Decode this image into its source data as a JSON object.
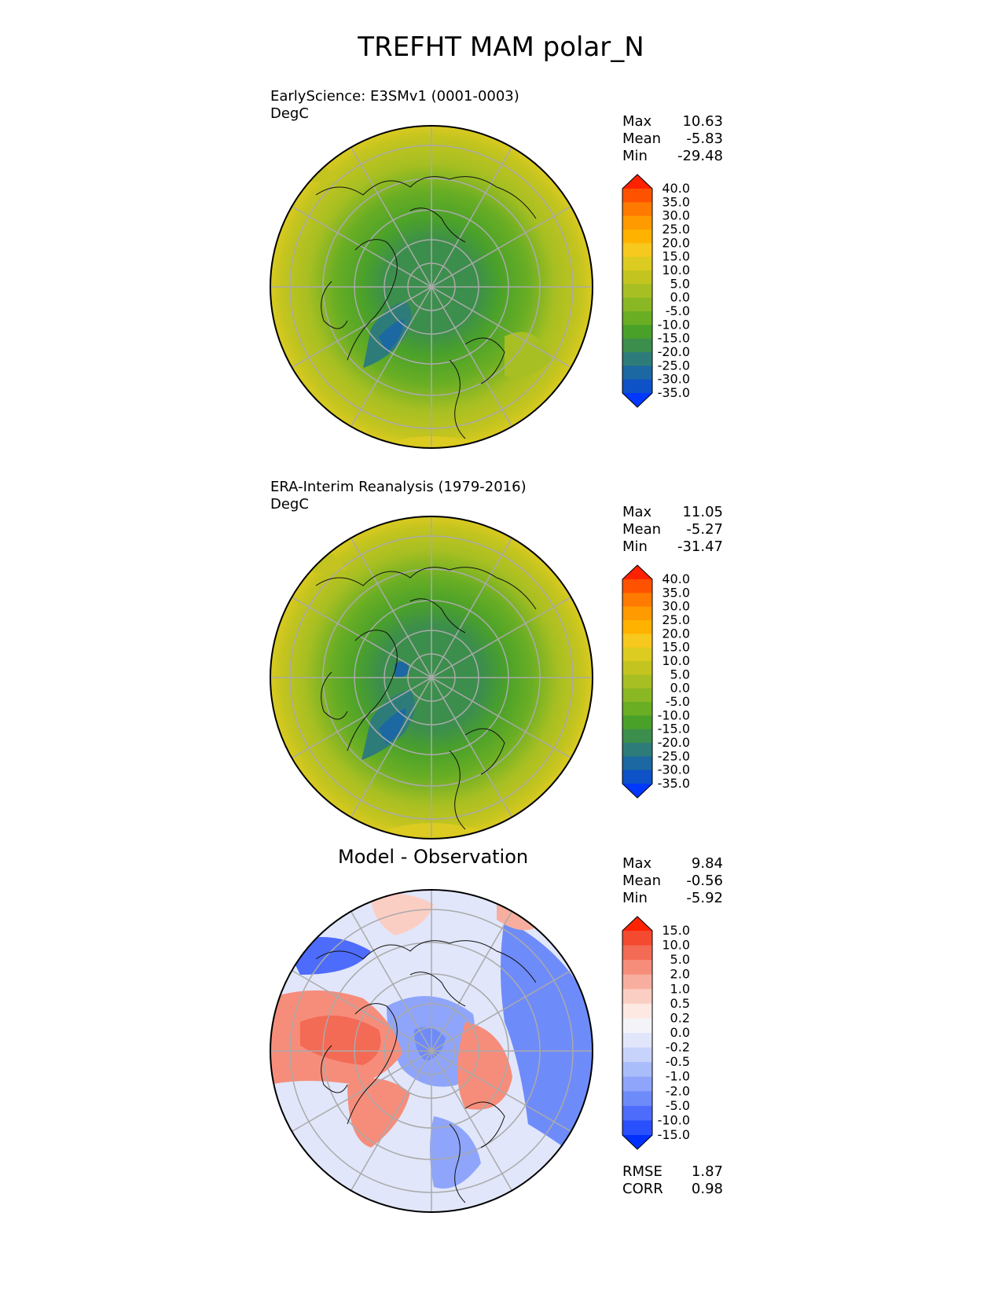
{
  "page_title": "TREFHT MAM polar_N",
  "colors": {
    "background": "#ffffff",
    "grid": "#aaaaaa",
    "coast": "#111111"
  },
  "panels": [
    {
      "id": "test",
      "subtitle": "EarlyScience: E3SMv1 (0001-0003)",
      "units": "DegC",
      "stats": {
        "max_label": "Max",
        "max": "10.63",
        "mean_label": "Mean",
        "mean": "-5.83",
        "min_label": "Min",
        "min": "-29.48"
      },
      "colorbar_labels": [
        "40.0",
        "35.0",
        "30.0",
        "25.0",
        "20.0",
        "15.0",
        "10.0",
        "5.0",
        "0.0",
        "-5.0",
        "-10.0",
        "-15.0",
        "-20.0",
        "-25.0",
        "-30.0",
        "-35.0"
      ]
    },
    {
      "id": "reference",
      "subtitle": "ERA-Interim Reanalysis (1979-2016)",
      "units": "DegC",
      "stats": {
        "max_label": "Max",
        "max": "11.05",
        "mean_label": "Mean",
        "mean": "-5.27",
        "min_label": "Min",
        "min": "-31.47"
      },
      "colorbar_labels": [
        "40.0",
        "35.0",
        "30.0",
        "25.0",
        "20.0",
        "15.0",
        "10.0",
        "5.0",
        "0.0",
        "-5.0",
        "-10.0",
        "-15.0",
        "-20.0",
        "-25.0",
        "-30.0",
        "-35.0"
      ]
    },
    {
      "id": "difference",
      "title": "Model - Observation",
      "stats": {
        "max_label": "Max",
        "max": "9.84",
        "mean_label": "Mean",
        "mean": "-0.56",
        "min_label": "Min",
        "min": "-5.92"
      },
      "colorbar_labels": [
        "15.0",
        "10.0",
        "5.0",
        "2.0",
        "1.0",
        "0.5",
        "0.2",
        "0.0",
        "-0.2",
        "-0.5",
        "-1.0",
        "-2.0",
        "-5.0",
        "-10.0",
        "-15.0"
      ],
      "metrics": {
        "rmse_label": "RMSE",
        "rmse": "1.87",
        "corr_label": "CORR",
        "corr": "0.98"
      }
    }
  ],
  "temp_colorbar_colors": [
    "#ff2200",
    "#ff5200",
    "#ff7a00",
    "#ff9a00",
    "#ffb200",
    "#f7c81e",
    "#dccb20",
    "#c3c41f",
    "#a7bf22",
    "#8ab824",
    "#6aae24",
    "#4aa12a",
    "#3c8e4c",
    "#2e7c7a",
    "#1c68a2",
    "#0e52c8",
    "#0038ff"
  ],
  "diff_colorbar_colors": [
    "#ff2200",
    "#f44a30",
    "#f36a55",
    "#f68d7b",
    "#f8ae9f",
    "#fbcec3",
    "#fde8e2",
    "#f4f4f8",
    "#e1e6fa",
    "#c7d3fa",
    "#aabdfb",
    "#8ea5fb",
    "#6e8bfa",
    "#4d6cfb",
    "#2a4ffd",
    "#0030ff"
  ]
}
